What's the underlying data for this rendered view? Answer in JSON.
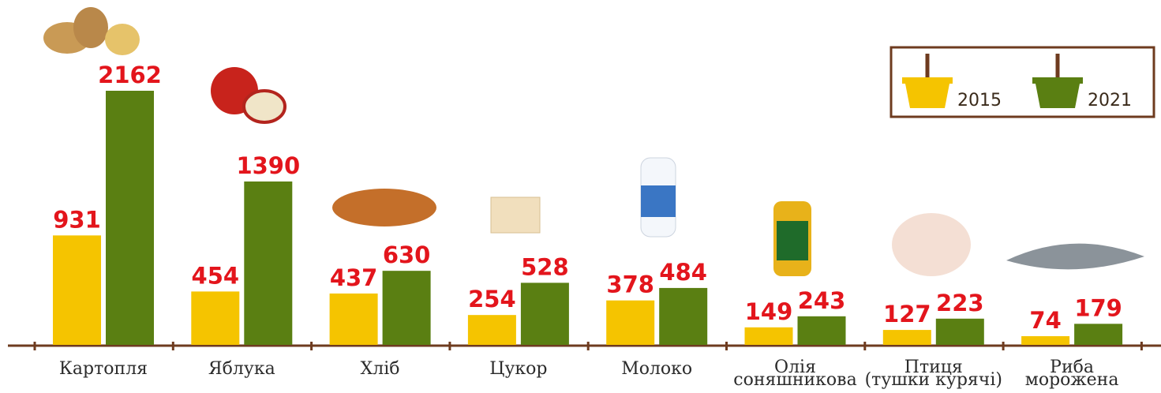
{
  "chart_data": {
    "type": "bar",
    "categories": [
      "Картопля",
      "Яблука",
      "Хліб",
      "Цукор",
      "Молоко",
      "Олія\nсоняшникова",
      "Птиця\n(тушки курячі)",
      "Риба\nморожена"
    ],
    "series": [
      {
        "name": "2015",
        "color": "#f5c400",
        "values": [
          931,
          454,
          437,
          254,
          378,
          149,
          127,
          74
        ]
      },
      {
        "name": "2021",
        "color": "#5a7f12",
        "values": [
          2162,
          1390,
          630,
          528,
          484,
          243,
          223,
          179
        ]
      }
    ]
  }
}
